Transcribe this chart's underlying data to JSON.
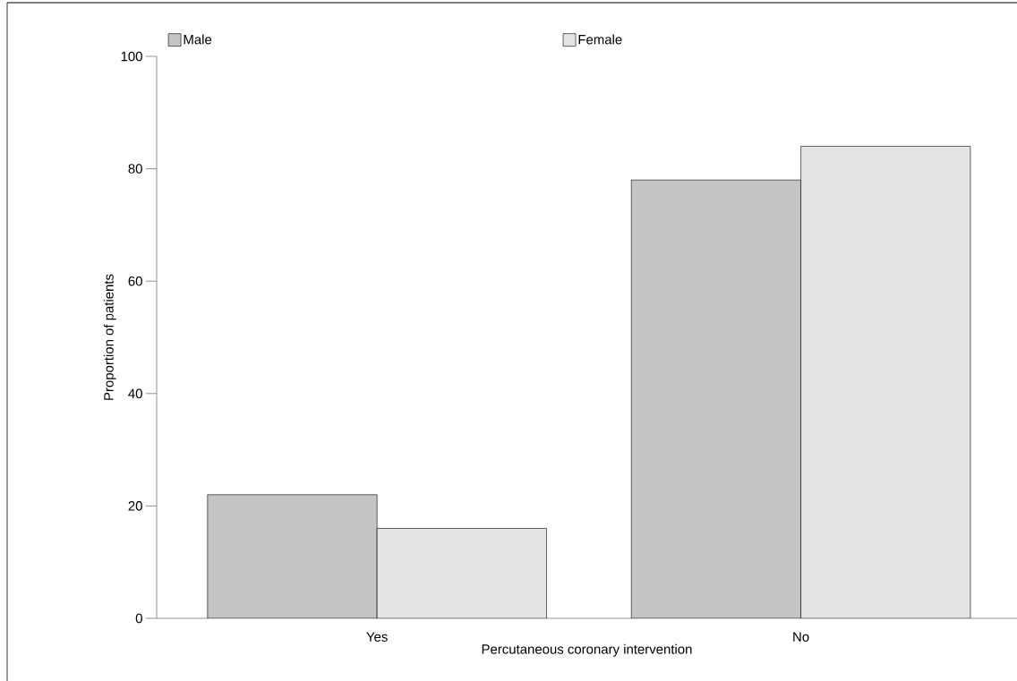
{
  "chart_data": {
    "type": "bar",
    "xlabel": "Percutaneous coronary intervention",
    "ylabel": "Proportion of patients",
    "categories": [
      "Yes",
      "No"
    ],
    "series": [
      {
        "name": "Male",
        "color": "#c4c4c4",
        "values": [
          22,
          78
        ]
      },
      {
        "name": "Female",
        "color": "#e4e4e4",
        "values": [
          16,
          84
        ]
      }
    ],
    "ylim": [
      0,
      100
    ],
    "yticks": [
      0,
      20,
      40,
      60,
      80,
      100
    ],
    "grid": false,
    "legend": "top"
  }
}
